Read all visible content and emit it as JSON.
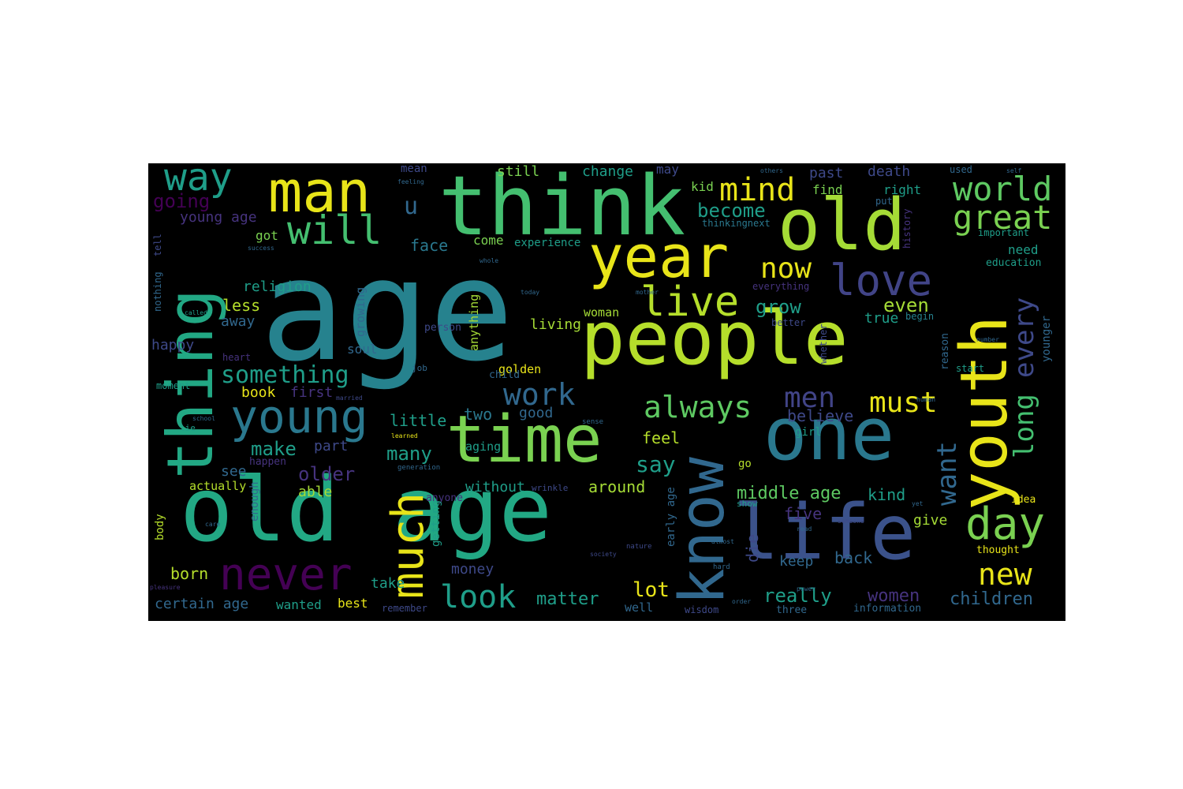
{
  "palette": {
    "yellow": "#e8e419",
    "light_green": "#a5db36",
    "green": "#7ad151",
    "sea_green": "#44bf70",
    "teal_green": "#22a884",
    "teal": "#1f9e89",
    "blue_teal": "#26828e",
    "blue": "#31688e",
    "indigo": "#3e4989",
    "purple": "#482878",
    "dark_purple": "#440154"
  },
  "words": [
    {
      "text": "age",
      "color": "#26828e",
      "w": 0.94
    },
    {
      "text": "think",
      "color": "#44bf70",
      "w": 0.72
    },
    {
      "text": "people",
      "color": "#b5de2b",
      "w": 0.68
    },
    {
      "text": "old age",
      "color": "#22a884",
      "w": 0.66
    },
    {
      "text": "old",
      "color": "#a5db36",
      "w": 0.6
    },
    {
      "text": "thing",
      "color": "#22a884",
      "w": 0.62
    },
    {
      "text": "year",
      "color": "#e8e419",
      "w": 0.52
    },
    {
      "text": "man",
      "color": "#e8e419",
      "w": 0.5
    },
    {
      "text": "youth",
      "color": "#e8e419",
      "w": 0.6
    },
    {
      "text": "one",
      "color": "#2a788e",
      "w": 0.58
    },
    {
      "text": "life",
      "color": "#3b528b",
      "w": 0.58
    },
    {
      "text": "time",
      "color": "#7ad151",
      "w": 0.54
    },
    {
      "text": "know",
      "color": "#31688e",
      "w": 0.56
    },
    {
      "text": "much",
      "color": "#e8e419",
      "w": 0.44
    },
    {
      "text": "young",
      "color": "#2a788e",
      "w": 0.4
    },
    {
      "text": "love",
      "color": "#414487",
      "w": 0.38
    },
    {
      "text": "live",
      "color": "#b5de2b",
      "w": 0.36
    },
    {
      "text": "way",
      "color": "#1f9e89",
      "w": 0.34
    },
    {
      "text": "will",
      "color": "#44bf70",
      "w": 0.34
    },
    {
      "text": "never",
      "color": "#440154",
      "w": 0.36
    },
    {
      "text": "day",
      "color": "#7ad151",
      "w": 0.36
    },
    {
      "text": "world",
      "color": "#5ec962",
      "w": 0.3
    },
    {
      "text": "great",
      "color": "#7ad151",
      "w": 0.3
    },
    {
      "text": "mind",
      "color": "#e8e419",
      "w": 0.3
    },
    {
      "text": "work",
      "color": "#31688e",
      "w": 0.28
    },
    {
      "text": "always",
      "color": "#5ec962",
      "w": 0.28
    },
    {
      "text": "men",
      "color": "#414487",
      "w": 0.28
    },
    {
      "text": "must",
      "color": "#e8e419",
      "w": 0.26
    },
    {
      "text": "look",
      "color": "#1f9e89",
      "w": 0.3
    },
    {
      "text": "new",
      "color": "#e8e419",
      "w": 0.28
    },
    {
      "text": "now",
      "color": "#e8e419",
      "w": 0.26
    },
    {
      "text": "every",
      "color": "#3e4989",
      "w": 0.26
    },
    {
      "text": "long",
      "color": "#44bf70",
      "w": 0.26
    },
    {
      "text": "want",
      "color": "#31688e",
      "w": 0.26
    },
    {
      "text": "something",
      "color": "#1f9e89",
      "w": 0.22
    },
    {
      "text": "u",
      "color": "#31688e",
      "w": 0.22
    },
    {
      "text": "going",
      "color": "#440154",
      "w": 0.2
    },
    {
      "text": "young age",
      "color": "#46337e",
      "w": 0.14
    },
    {
      "text": "become",
      "color": "#1f9e89",
      "w": 0.18
    },
    {
      "text": "grow",
      "color": "#1f9e89",
      "w": 0.2
    },
    {
      "text": "even",
      "color": "#a5db36",
      "w": 0.18
    },
    {
      "text": "true",
      "color": "#1f9e89",
      "w": 0.14
    },
    {
      "text": "believe",
      "color": "#3e4989",
      "w": 0.16
    },
    {
      "text": "middle age",
      "color": "#5ec962",
      "w": 0.18
    },
    {
      "text": "kind",
      "color": "#1f9e89",
      "w": 0.16
    },
    {
      "text": "say",
      "color": "#1f9e89",
      "w": 0.2
    },
    {
      "text": "feel",
      "color": "#b5de2b",
      "w": 0.16
    },
    {
      "text": "lot",
      "color": "#e8e419",
      "w": 0.2
    },
    {
      "text": "matter",
      "color": "#1f9e89",
      "w": 0.18
    },
    {
      "text": "really",
      "color": "#1f9e89",
      "w": 0.2
    },
    {
      "text": "women",
      "color": "#46337e",
      "w": 0.18
    },
    {
      "text": "children",
      "color": "#31688e",
      "w": 0.18
    },
    {
      "text": "five",
      "color": "#46337e",
      "w": 0.16
    },
    {
      "text": "give",
      "color": "#a5db36",
      "w": 0.14
    },
    {
      "text": "keep",
      "color": "#31688e",
      "w": 0.14
    },
    {
      "text": "back",
      "color": "#31688e",
      "w": 0.16
    },
    {
      "text": "die",
      "color": "#3e4989",
      "w": 0.16
    },
    {
      "text": "many",
      "color": "#1f9e89",
      "w": 0.18
    },
    {
      "text": "make",
      "color": "#1f9e89",
      "w": 0.18
    },
    {
      "text": "part",
      "color": "#3e4989",
      "w": 0.14
    },
    {
      "text": "older",
      "color": "#46337e",
      "w": 0.18
    },
    {
      "text": "able",
      "color": "#a5db36",
      "w": 0.14
    },
    {
      "text": "without",
      "color": "#1f9e89",
      "w": 0.14
    },
    {
      "text": "around",
      "color": "#a5db36",
      "w": 0.16
    },
    {
      "text": "little",
      "color": "#1f9e89",
      "w": 0.16
    },
    {
      "text": "two",
      "color": "#2a788e",
      "w": 0.16
    },
    {
      "text": "good",
      "color": "#31688e",
      "w": 0.14
    },
    {
      "text": "book",
      "color": "#e8e419",
      "w": 0.14
    },
    {
      "text": "first",
      "color": "#46337e",
      "w": 0.14
    },
    {
      "text": "less",
      "color": "#b5de2b",
      "w": 0.16
    },
    {
      "text": "away",
      "color": "#31688e",
      "w": 0.14
    },
    {
      "text": "happy",
      "color": "#3e4989",
      "w": 0.14
    },
    {
      "text": "religion",
      "color": "#1f9e89",
      "w": 0.14
    },
    {
      "text": "got",
      "color": "#7ad151",
      "w": 0.14
    },
    {
      "text": "face",
      "color": "#2a788e",
      "w": 0.16
    },
    {
      "text": "come",
      "color": "#7ad151",
      "w": 0.14
    },
    {
      "text": "experience",
      "color": "#1f9e89",
      "w": 0.12
    },
    {
      "text": "change",
      "color": "#1f9e89",
      "w": 0.14
    },
    {
      "text": "still",
      "color": "#7ad151",
      "w": 0.14
    },
    {
      "text": "mean",
      "color": "#3e4989",
      "w": 0.12
    },
    {
      "text": "may",
      "color": "#3e4989",
      "w": 0.14
    },
    {
      "text": "kid",
      "color": "#7ad151",
      "w": 0.12
    },
    {
      "text": "find",
      "color": "#7ad151",
      "w": 0.14
    },
    {
      "text": "right",
      "color": "#1f9e89",
      "w": 0.14
    },
    {
      "text": "past",
      "color": "#3e4989",
      "w": 0.14
    },
    {
      "text": "death",
      "color": "#3e4989",
      "w": 0.14
    },
    {
      "text": "used",
      "color": "#31688e",
      "w": 0.1
    },
    {
      "text": "put",
      "color": "#31688e",
      "w": 0.1
    },
    {
      "text": "thinkingnext",
      "color": "#2a788e",
      "w": 0.1
    },
    {
      "text": "important",
      "color": "#1f9e89",
      "w": 0.1
    },
    {
      "text": "need",
      "color": "#1f9e89",
      "w": 0.14
    },
    {
      "text": "education",
      "color": "#1f9e89",
      "w": 0.1
    },
    {
      "text": "begin",
      "color": "#26828e",
      "w": 0.1
    },
    {
      "text": "better",
      "color": "#3e4989",
      "w": 0.1
    },
    {
      "text": "everything",
      "color": "#46337e",
      "w": 0.08
    },
    {
      "text": "reason",
      "color": "#31688e",
      "w": 0.1
    },
    {
      "text": "start",
      "color": "#1f9e89",
      "w": 0.08
    },
    {
      "text": "younger",
      "color": "#31688e",
      "w": 0.12
    },
    {
      "text": "history",
      "color": "#46337e",
      "w": 0.1
    },
    {
      "text": "whether",
      "color": "#3e4989",
      "w": 0.1
    },
    {
      "text": "girl",
      "color": "#1f9e89",
      "w": 0.1
    },
    {
      "text": "go",
      "color": "#b5de2b",
      "w": 0.1
    },
    {
      "text": "show",
      "color": "#1f9e89",
      "w": 0.08
    },
    {
      "text": "idea",
      "color": "#e8e419",
      "w": 0.1
    },
    {
      "text": "thought",
      "color": "#e8e419",
      "w": 0.1
    },
    {
      "text": "information",
      "color": "#31688e",
      "w": 0.1
    },
    {
      "text": "three",
      "color": "#31688e",
      "w": 0.1
    },
    {
      "text": "wisdom",
      "color": "#3e4989",
      "w": 0.08
    },
    {
      "text": "well",
      "color": "#31688e",
      "w": 0.12
    },
    {
      "text": "early age",
      "color": "#31688e",
      "w": 0.12
    },
    {
      "text": "best",
      "color": "#e8e419",
      "w": 0.14
    },
    {
      "text": "remember",
      "color": "#3e4989",
      "w": 0.1
    },
    {
      "text": "wanted",
      "color": "#1f9e89",
      "w": 0.14
    },
    {
      "text": "certain age",
      "color": "#31688e",
      "w": 0.14
    },
    {
      "text": "take",
      "color": "#1f9e89",
      "w": 0.14
    },
    {
      "text": "money",
      "color": "#3e4989",
      "w": 0.14
    },
    {
      "text": "born",
      "color": "#b5de2b",
      "w": 0.16
    },
    {
      "text": "body",
      "color": "#b5de2b",
      "w": 0.12
    },
    {
      "text": "actually",
      "color": "#b5de2b",
      "w": 0.12
    },
    {
      "text": "enough",
      "color": "#31688e",
      "w": 0.12
    },
    {
      "text": "see",
      "color": "#31688e",
      "w": 0.14
    },
    {
      "text": "happen",
      "color": "#46337e",
      "w": 0.1
    },
    {
      "text": "anyone",
      "color": "#46337e",
      "w": 0.1
    },
    {
      "text": "getting",
      "color": "#1f9e89",
      "w": 0.12
    },
    {
      "text": "aging",
      "color": "#1f9e89",
      "w": 0.12
    },
    {
      "text": "golden",
      "color": "#e8e419",
      "w": 0.12
    },
    {
      "text": "child",
      "color": "#31688e",
      "w": 0.1
    },
    {
      "text": "living",
      "color": "#a5db36",
      "w": 0.14
    },
    {
      "text": "woman",
      "color": "#a5db36",
      "w": 0.12
    },
    {
      "text": "person",
      "color": "#3e4989",
      "w": 0.1
    },
    {
      "text": "soul",
      "color": "#31688e",
      "w": 0.12
    },
    {
      "text": "growing",
      "color": "#31688e",
      "w": 0.12
    },
    {
      "text": "anything",
      "color": "#a5db36",
      "w": 0.12
    },
    {
      "text": "moment",
      "color": "#1f9e89",
      "w": 0.08
    },
    {
      "text": "heart",
      "color": "#46337e",
      "w": 0.08
    },
    {
      "text": "wrinkle",
      "color": "#3e4989",
      "w": 0.08
    },
    {
      "text": "nothing",
      "color": "#31688e",
      "w": 0.08
    },
    {
      "text": "tell",
      "color": "#3e4989",
      "w": 0.08
    },
    {
      "text": "job",
      "color": "#31688e",
      "w": 0.08
    },
    {
      "text": "lie",
      "color": "#1f9e89",
      "w": 0.08
    },
    {
      "text": "generation",
      "color": "#31688e",
      "w": 0.06
    },
    {
      "text": "sense",
      "color": "#31688e",
      "w": 0.06
    },
    {
      "text": "hard",
      "color": "#31688e",
      "w": 0.06
    },
    {
      "text": "nature",
      "color": "#3e4989",
      "w": 0.06
    },
    {
      "text": "success",
      "color": "#31688e",
      "w": 0.05
    },
    {
      "text": "called",
      "color": "#1f9e89",
      "w": 0.05
    },
    {
      "text": "school",
      "color": "#31688e",
      "w": 0.05
    },
    {
      "text": "learned",
      "color": "#e8e419",
      "w": 0.05
    },
    {
      "text": "married",
      "color": "#3e4989",
      "w": 0.05
    },
    {
      "text": "care",
      "color": "#31688e",
      "w": 0.05
    },
    {
      "text": "pleasure",
      "color": "#46337e",
      "w": 0.05
    },
    {
      "text": "order",
      "color": "#31688e",
      "w": 0.05
    },
    {
      "text": "power",
      "color": "#31688e",
      "w": 0.05
    },
    {
      "text": "almost",
      "color": "#31688e",
      "w": 0.05
    },
    {
      "text": "read",
      "color": "#31688e",
      "w": 0.05
    },
    {
      "text": "someone",
      "color": "#3e4989",
      "w": 0.05
    },
    {
      "text": "society",
      "color": "#3e4989",
      "w": 0.05
    },
    {
      "text": "yet",
      "color": "#31688e",
      "w": 0.05
    },
    {
      "text": "human",
      "color": "#31688e",
      "w": 0.05
    },
    {
      "text": "number",
      "color": "#31688e",
      "w": 0.05
    },
    {
      "text": "whole",
      "color": "#31688e",
      "w": 0.05
    },
    {
      "text": "today",
      "color": "#31688e",
      "w": 0.05
    },
    {
      "text": "mother",
      "color": "#31688e",
      "w": 0.05
    },
    {
      "text": "feeling",
      "color": "#31688e",
      "w": 0.05
    },
    {
      "text": "others",
      "color": "#31688e",
      "w": 0.05
    },
    {
      "text": "self",
      "color": "#31688e",
      "w": 0.05
    }
  ]
}
